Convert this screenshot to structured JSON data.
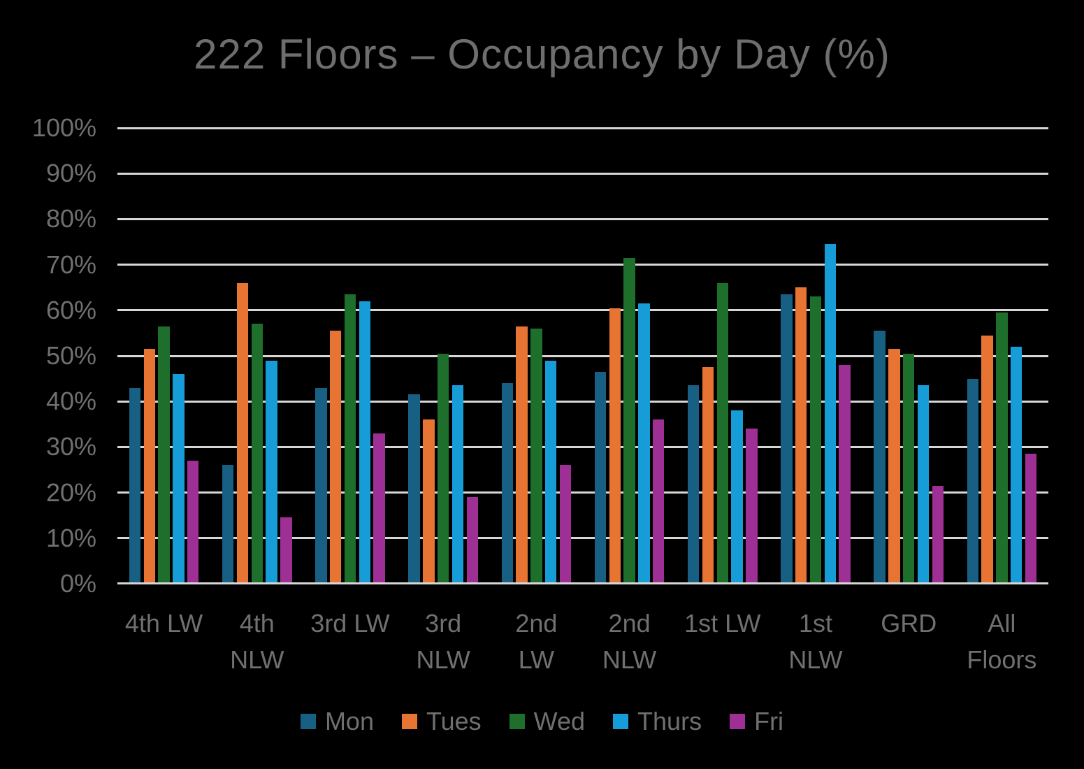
{
  "title": "222 Floors – Occupancy by Day (%)",
  "colors": {
    "background": "#000000",
    "title_text": "#6E6E6E",
    "axis_text": "#707070",
    "gridline": "#D6D6D6"
  },
  "chart_data": {
    "type": "bar",
    "title": "222 Floors – Occupancy by Day (%)",
    "xlabel": "",
    "ylabel": "",
    "grid": true,
    "legend_position": "bottom",
    "y_axis": {
      "min": 0,
      "max": 100,
      "step": 10,
      "tick_suffix": "%"
    },
    "y_tick_labels": [
      "100%",
      "90%",
      "80%",
      "70%",
      "60%",
      "50%",
      "40%",
      "30%",
      "20%",
      "10%",
      "0%"
    ],
    "categories": [
      "4th LW",
      "4th NLW",
      "3rd LW",
      "3rd NLW",
      "2nd LW",
      "2nd NLW",
      "1st LW",
      "1st NLW",
      "GRD",
      "All Floors"
    ],
    "category_label_lines": [
      [
        "4th LW"
      ],
      [
        "4th",
        "NLW"
      ],
      [
        "3rd LW"
      ],
      [
        "3rd",
        "NLW"
      ],
      [
        "2nd",
        "LW"
      ],
      [
        "2nd",
        "NLW"
      ],
      [
        "1st LW"
      ],
      [
        "1st",
        "NLW"
      ],
      [
        "GRD"
      ],
      [
        "All",
        "Floors"
      ]
    ],
    "series": [
      {
        "name": "Mon",
        "color": "#175F83",
        "values": [
          43,
          26,
          43,
          41.5,
          44,
          46.5,
          43.5,
          63.5,
          55.5,
          45
        ]
      },
      {
        "name": "Tues",
        "color": "#E87434",
        "values": [
          51.5,
          66,
          55.5,
          36,
          56.5,
          60.5,
          47.5,
          65,
          51.5,
          54.5
        ]
      },
      {
        "name": "Wed",
        "color": "#1E6E2C",
        "values": [
          56.5,
          57,
          63.5,
          50.5,
          56,
          71.5,
          66,
          63,
          50.5,
          59.5
        ]
      },
      {
        "name": "Thurs",
        "color": "#169DD8",
        "values": [
          46,
          49,
          62,
          43.5,
          49,
          61.5,
          38,
          74.5,
          43.5,
          52
        ]
      },
      {
        "name": "Fri",
        "color": "#9E3095",
        "values": [
          27,
          14.5,
          33,
          19,
          26,
          36,
          34,
          48,
          21.5,
          28.5
        ]
      }
    ]
  }
}
